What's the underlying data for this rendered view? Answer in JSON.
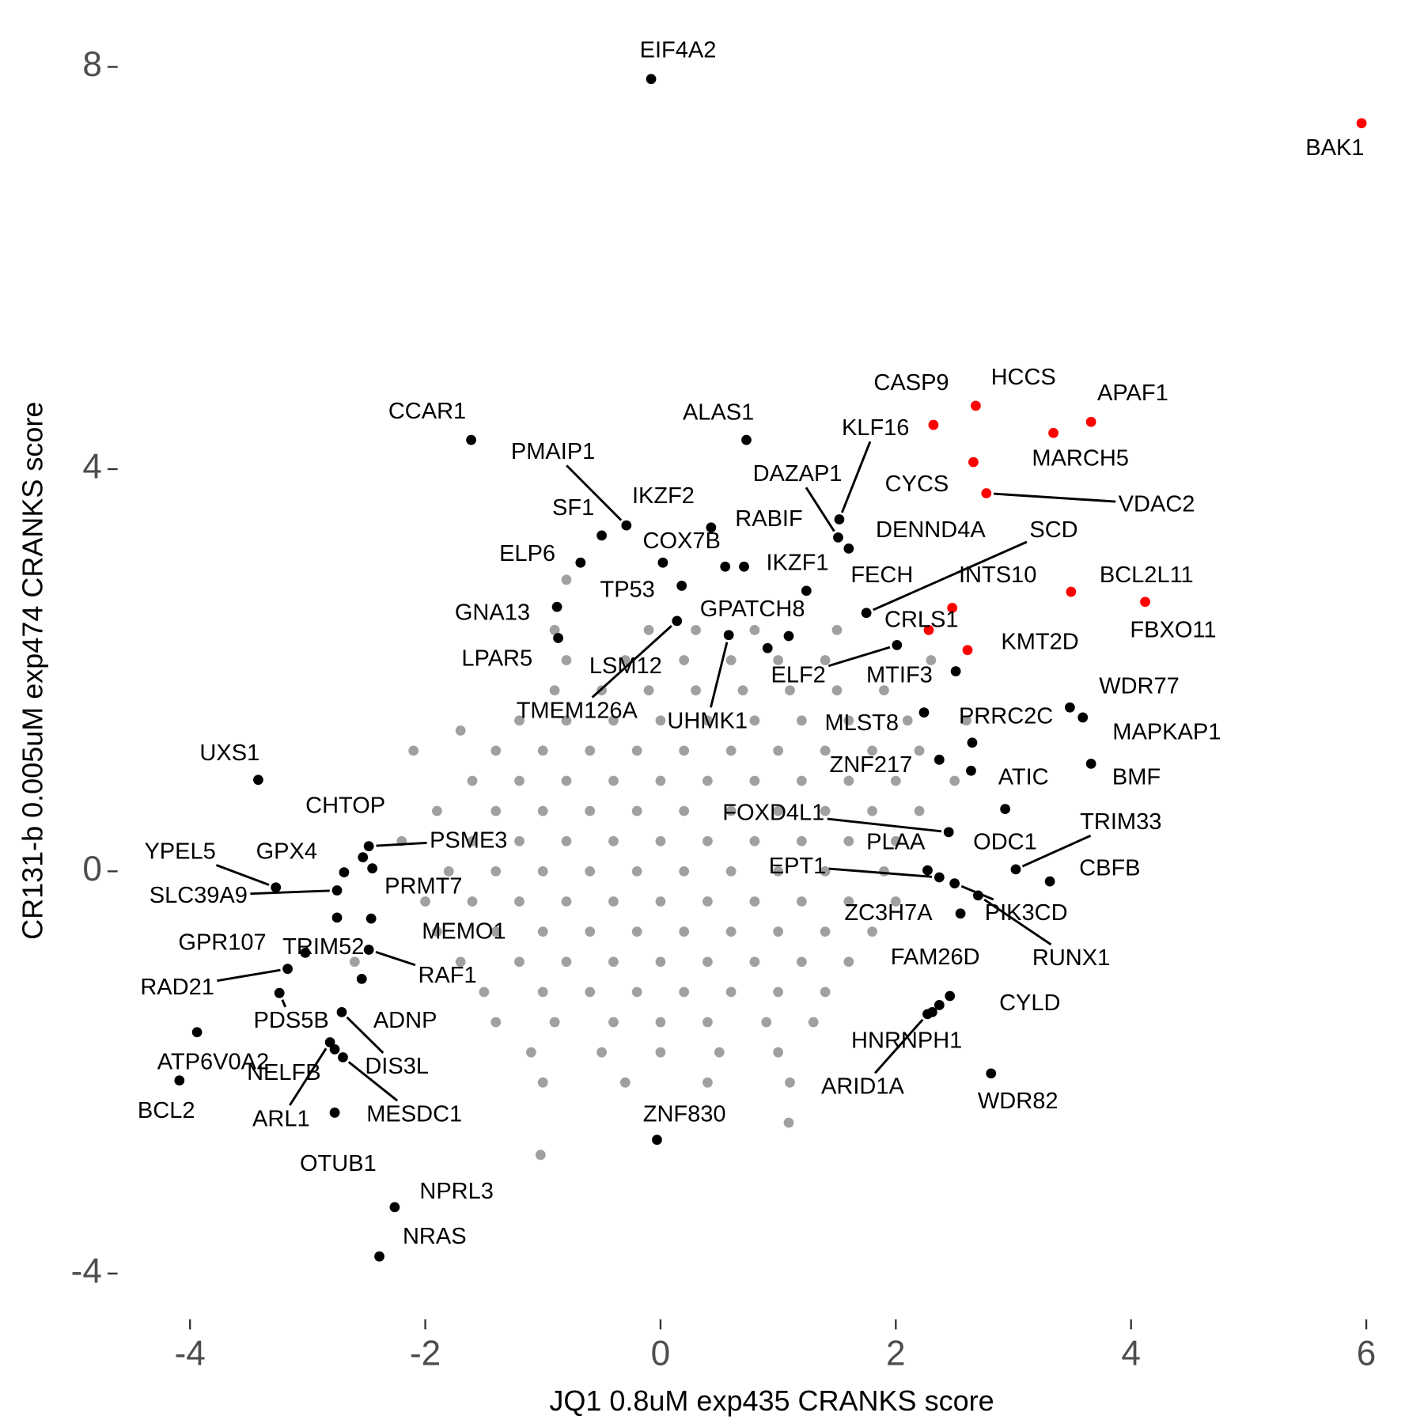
{
  "chart_data": {
    "type": "scatter",
    "x_label": "JQ1 0.8uM exp435 CRANKS score",
    "y_label": "CR131-b 0.005uM exp474 CRANKS score",
    "xlim": [
      -4.6,
      6.1
    ],
    "ylim": [
      -4.4,
      8.3
    ],
    "xticks": [
      -4,
      -2,
      0,
      2,
      4,
      6
    ],
    "yticks": [
      -4,
      0,
      4,
      8
    ],
    "series": [
      {
        "color": "#a0a0a0",
        "x": [
          -0.9,
          -0.1,
          0.3,
          0.8,
          1.5,
          -0.8,
          -0.3,
          0.2,
          0.6,
          1.0,
          1.4,
          2.3,
          -0.9,
          -0.5,
          -0.1,
          0.3,
          0.7,
          1.1,
          1.5,
          1.9,
          -1.2,
          -0.8,
          -0.4,
          0,
          0.4,
          0.8,
          1.2,
          1.6,
          2.1,
          2.6,
          -1.4,
          -1.0,
          -0.6,
          -0.2,
          0.2,
          0.6,
          1.0,
          1.4,
          1.8,
          2.2,
          -1.6,
          -1.2,
          -0.8,
          -0.4,
          0,
          0.4,
          0.8,
          1.2,
          1.6,
          2.0,
          2.5,
          -1.9,
          -1.4,
          -1.0,
          -0.6,
          -0.2,
          0.2,
          0.6,
          1.0,
          1.4,
          1.8,
          2.2,
          -2.2,
          -1.6,
          -1.2,
          -0.8,
          -0.4,
          0,
          0.4,
          0.8,
          1.2,
          1.6,
          2.0,
          -1.8,
          -1.4,
          -1.0,
          -0.6,
          -0.2,
          0.2,
          0.6,
          1.0,
          1.4,
          1.9,
          -2.0,
          -1.6,
          -1.2,
          -0.8,
          -0.4,
          0,
          0.4,
          0.8,
          1.2,
          1.6,
          2.0,
          -1.9,
          -1.4,
          -1.0,
          -0.6,
          -0.2,
          0.2,
          0.6,
          1.0,
          1.4,
          1.8,
          -1.7,
          -1.2,
          -0.8,
          -0.4,
          0,
          0.4,
          0.8,
          1.2,
          1.6,
          -1.5,
          -1.0,
          -0.6,
          -0.2,
          0.2,
          0.6,
          1.0,
          1.4,
          -1.4,
          -0.9,
          -0.4,
          0,
          0.4,
          0.9,
          1.3,
          -1.1,
          -0.5,
          0,
          0.5,
          1.0,
          -1.0,
          -0.3,
          0.4,
          1.1,
          -1.02,
          1.09,
          -2.1,
          -1.7,
          -2.6,
          -0.8
        ],
        "y": [
          2.4,
          2.4,
          2.4,
          2.4,
          2.4,
          2.1,
          2.1,
          2.1,
          2.1,
          2.1,
          2.1,
          2.1,
          1.8,
          1.8,
          1.8,
          1.8,
          1.8,
          1.8,
          1.8,
          1.8,
          1.5,
          1.5,
          1.5,
          1.5,
          1.5,
          1.5,
          1.5,
          1.5,
          1.5,
          1.5,
          1.2,
          1.2,
          1.2,
          1.2,
          1.2,
          1.2,
          1.2,
          1.2,
          1.2,
          1.2,
          0.9,
          0.9,
          0.9,
          0.9,
          0.9,
          0.9,
          0.9,
          0.9,
          0.9,
          0.9,
          0.9,
          0.6,
          0.6,
          0.6,
          0.6,
          0.6,
          0.6,
          0.6,
          0.6,
          0.6,
          0.6,
          0.6,
          0.3,
          0.3,
          0.3,
          0.3,
          0.3,
          0.3,
          0.3,
          0.3,
          0.3,
          0.3,
          0.3,
          0,
          0,
          0,
          0,
          0,
          0,
          0,
          0,
          0,
          0,
          -0.3,
          -0.3,
          -0.3,
          -0.3,
          -0.3,
          -0.3,
          -0.3,
          -0.3,
          -0.3,
          -0.3,
          -0.3,
          -0.6,
          -0.6,
          -0.6,
          -0.6,
          -0.6,
          -0.6,
          -0.6,
          -0.6,
          -0.6,
          -0.6,
          -0.9,
          -0.9,
          -0.9,
          -0.9,
          -0.9,
          -0.9,
          -0.9,
          -0.9,
          -0.9,
          -1.2,
          -1.2,
          -1.2,
          -1.2,
          -1.2,
          -1.2,
          -1.2,
          -1.2,
          -1.5,
          -1.5,
          -1.5,
          -1.5,
          -1.5,
          -1.5,
          -1.5,
          -1.8,
          -1.8,
          -1.8,
          -1.8,
          -1.8,
          -2.1,
          -2.1,
          -2.1,
          -2.1,
          -2.82,
          -2.5,
          1.2,
          1.4,
          -0.9,
          2.9
        ]
      },
      {
        "color": "#000000",
        "labels": [
          "EIF4A2",
          "CCAR1",
          "ALAS1",
          "PMAIP1",
          "IKZF2",
          "SF1",
          "COX7B",
          "ELP6",
          "RABIF",
          "IKZF1",
          "TP53",
          "DAZAP1",
          "KLF16",
          "DENND4A",
          "FECH",
          "SCD",
          "GNA13",
          "GPATCH8",
          "LPAR5",
          "TMEM126A",
          "UHMK1",
          "LSM12",
          "ELF2",
          "MTIF3",
          "WDR77",
          "MAPKAP1",
          "MLST8",
          "PRRC2C",
          "ZNF217",
          "ATIC",
          "BMF",
          "UXS1",
          "FOXD4L1",
          "CHTOP",
          "PSME3",
          "ODC1",
          "TRIM33",
          "PLAA",
          "EPT1",
          "CBFB",
          "YPEL5",
          "GPX4",
          "PRMT7",
          "SLC39A9",
          "ZC3H7A",
          "PIK3CD",
          "RUNX1",
          "MEMO1",
          "GPR107",
          "TRIM52",
          "RAF1",
          "FAM26D",
          "RAD21",
          "PDS5B",
          "ADNP",
          "CYLD",
          "HNRNPH1",
          "ARID1A",
          "ATP6V0A2",
          "DIS3L",
          "NELFB",
          "MESDC1",
          "BCL2",
          "ARL1",
          "OTUB1",
          "WDR82",
          "ZNF830",
          "NPRL3",
          "NRAS"
        ],
        "x": [
          -0.08,
          -1.61,
          0.73,
          -0.29,
          0.43,
          -0.5,
          0.02,
          -0.68,
          0.55,
          0.71,
          0.18,
          1.51,
          1.52,
          1.6,
          1.24,
          1.75,
          -0.88,
          1.09,
          -0.87,
          0.14,
          0.58,
          0.91,
          2.01,
          2.51,
          3.48,
          3.59,
          2.24,
          2.65,
          2.37,
          2.64,
          3.66,
          -3.42,
          2.45,
          -2.53,
          -2.48,
          2.93,
          3.02,
          2.27,
          2.37,
          3.31,
          -3.27,
          -2.69,
          -2.45,
          -2.75,
          2.55,
          2.5,
          2.7,
          -2.46,
          -2.75,
          -3.02,
          -2.48,
          2.46,
          -3.17,
          -3.24,
          -2.54,
          2.37,
          2.31,
          2.27,
          -3.94,
          -2.71,
          -2.77,
          -2.7,
          -4.09,
          -2.81,
          -2.77,
          2.81,
          -0.03,
          -2.26,
          -2.39
        ],
        "y": [
          7.88,
          4.29,
          4.29,
          3.44,
          3.42,
          3.34,
          3.07,
          3.07,
          3.03,
          3.03,
          2.84,
          3.32,
          3.5,
          3.21,
          2.79,
          2.57,
          2.63,
          2.34,
          2.32,
          2.49,
          2.35,
          2.22,
          2.25,
          1.99,
          1.63,
          1.53,
          1.58,
          1.28,
          1.11,
          1.0,
          1.07,
          0.91,
          0.39,
          0.14,
          0.25,
          0.62,
          0.02,
          0.01,
          -0.06,
          -0.1,
          -0.16,
          -0.01,
          0.03,
          -0.19,
          -0.42,
          -0.12,
          -0.24,
          -0.47,
          -0.46,
          -0.81,
          -0.78,
          -1.24,
          -0.97,
          -1.21,
          -1.07,
          -1.33,
          -1.4,
          -1.42,
          -1.6,
          -1.4,
          -1.77,
          -1.85,
          -2.08,
          -1.7,
          -2.4,
          -2.01,
          -2.67,
          -3.34,
          -3.83
        ]
      },
      {
        "color": "#ff0000",
        "labels": [
          "BAK1",
          "CASP9",
          "HCCS",
          "APAF1",
          "MARCH5",
          "CYCS",
          "VDAC2",
          "BCL2L11",
          "FBXO11",
          "INTS10",
          "CRLS1",
          "KMT2D"
        ],
        "x": [
          5.96,
          2.32,
          2.68,
          3.66,
          3.34,
          2.66,
          2.77,
          3.49,
          4.12,
          2.48,
          2.28,
          2.61
        ],
        "y": [
          7.44,
          4.44,
          4.63,
          4.47,
          4.36,
          4.07,
          3.76,
          2.78,
          2.68,
          2.62,
          2.4,
          2.2
        ]
      }
    ]
  }
}
